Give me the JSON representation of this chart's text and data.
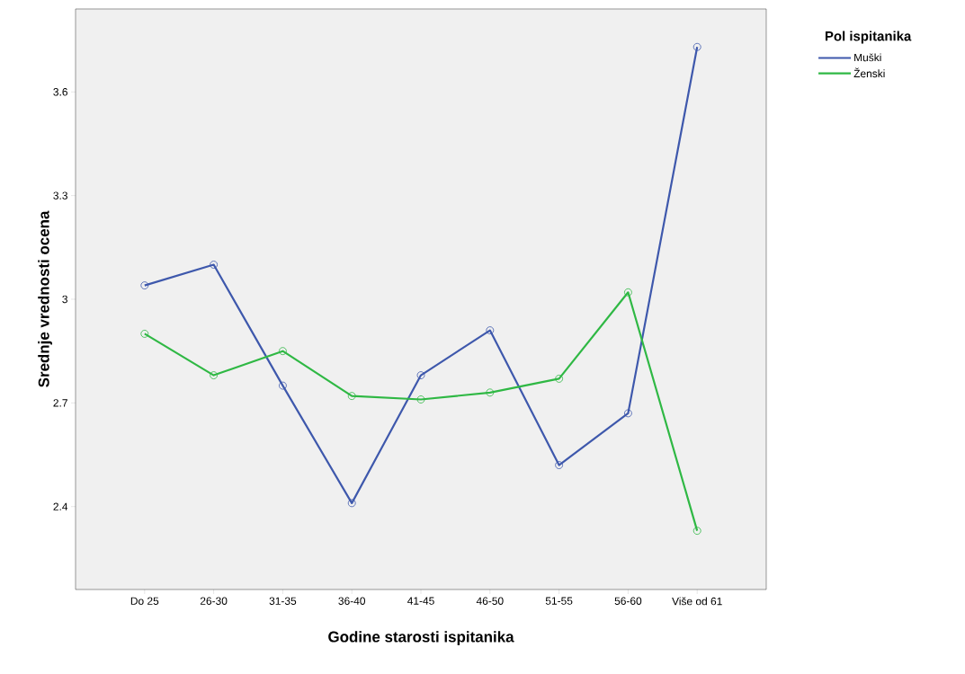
{
  "chart_data": {
    "type": "line",
    "xlabel": "Godine starosti ispitanika",
    "ylabel": "Srednje vrednosti  ocena",
    "legend_title": "Pol ispitanika",
    "categories": [
      "Do 25",
      "26-30",
      "31-35",
      "36-40",
      "41-45",
      "46-50",
      "51-55",
      "56-60",
      "Više od 61"
    ],
    "series": [
      {
        "name": "Muški",
        "color": "#3e58ac",
        "values": [
          3.04,
          3.1,
          2.75,
          2.41,
          2.78,
          2.91,
          2.52,
          2.67,
          3.73
        ]
      },
      {
        "name": "Ženski",
        "color": "#2fb844",
        "values": [
          2.9,
          2.78,
          2.85,
          2.72,
          2.71,
          2.73,
          2.77,
          3.02,
          2.33
        ]
      }
    ],
    "ylim": [
      2.16,
      3.84
    ],
    "yticks": [
      2.4,
      2.7,
      3,
      3.3,
      3.6
    ],
    "grid": false,
    "legend": "top right",
    "marker": "circle",
    "line_style": "solid"
  }
}
